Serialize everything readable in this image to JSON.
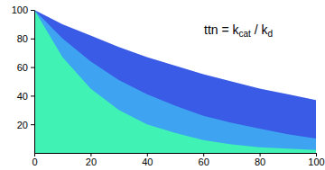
{
  "chart_data": {
    "type": "area",
    "x": [
      0,
      10,
      20,
      30,
      40,
      50,
      60,
      70,
      80,
      90,
      100
    ],
    "series": [
      {
        "color": "#3a5be6",
        "values": [
          100,
          90,
          82,
          74,
          67,
          61,
          55,
          50,
          45,
          41,
          37
        ]
      },
      {
        "color": "#3ea4f2",
        "values": [
          100,
          80,
          64,
          51,
          41,
          33,
          26,
          21,
          17,
          13,
          10
        ]
      },
      {
        "color": "#40f2b4",
        "values": [
          100,
          67,
          45,
          30,
          20,
          14,
          9,
          6,
          4,
          3,
          2
        ]
      }
    ],
    "xlim": [
      0,
      100
    ],
    "ylim": [
      0,
      100
    ],
    "xticks": [
      0,
      20,
      40,
      60,
      80,
      100
    ],
    "yticks": [
      20,
      40,
      60,
      80,
      100
    ],
    "annotation": [
      "ttn = k",
      "cat",
      " / k",
      "d"
    ]
  }
}
